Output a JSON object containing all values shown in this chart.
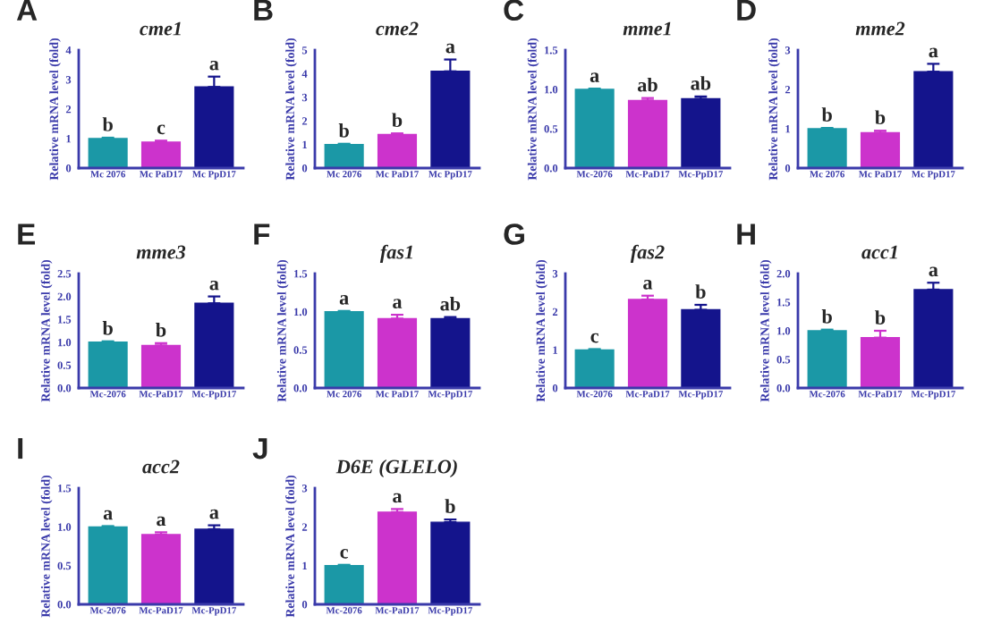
{
  "chart_data": [
    {
      "type": "bar",
      "title": "cme1",
      "annotations": [
        "A"
      ],
      "ylabel": "Relative mRNA level (fold)",
      "categories": [
        "Mc 2076",
        "Mc PaD17",
        "Mc PpD17"
      ],
      "values": [
        1.0,
        0.88,
        2.75
      ],
      "errors": [
        0.03,
        0.05,
        0.35
      ],
      "value_labels": [
        "b",
        "c",
        "a"
      ],
      "colors": [
        "#1b98a6",
        "#cc33cc",
        "#14148c"
      ],
      "ylim": [
        0,
        4
      ],
      "yticks": [
        0,
        1,
        2,
        3,
        4
      ]
    },
    {
      "type": "bar",
      "title": "cme2",
      "annotations": [
        "B"
      ],
      "ylabel": "Relative mRNA level (fold)",
      "categories": [
        "Mc 2076",
        "Mc PaD17",
        "Mc PpD17"
      ],
      "values": [
        1.0,
        1.42,
        4.1
      ],
      "errors": [
        0.03,
        0.05,
        0.5
      ],
      "value_labels": [
        "b",
        "b",
        "a"
      ],
      "colors": [
        "#1b98a6",
        "#cc33cc",
        "#14148c"
      ],
      "ylim": [
        0,
        5
      ],
      "yticks": [
        0,
        1,
        2,
        3,
        4,
        5
      ]
    },
    {
      "type": "bar",
      "title": "mme1",
      "annotations": [
        "C"
      ],
      "ylabel": "Relative mRNA level (fold)",
      "categories": [
        "Mc-2076",
        "Mc-PaD17",
        "Mc-PpD17"
      ],
      "values": [
        1.0,
        0.86,
        0.88
      ],
      "errors": [
        0.01,
        0.03,
        0.03
      ],
      "value_labels": [
        "a",
        "ab",
        "ab"
      ],
      "colors": [
        "#1b98a6",
        "#cc33cc",
        "#14148c"
      ],
      "ylim": [
        0,
        1.5
      ],
      "yticks": [
        {
          "value": 0,
          "label": "0.0"
        },
        {
          "value": 0.5,
          "label": "0.5"
        },
        {
          "value": 1,
          "label": "1.0"
        },
        {
          "value": 1.5,
          "label": "1.5"
        }
      ]
    },
    {
      "type": "bar",
      "title": "mme2",
      "annotations": [
        "D"
      ],
      "ylabel": "Relative mRNA level (fold)",
      "categories": [
        "Mc 2076",
        "Mc PaD17",
        "Mc PpD17"
      ],
      "values": [
        1.0,
        0.9,
        2.45
      ],
      "errors": [
        0.02,
        0.05,
        0.2
      ],
      "value_labels": [
        "b",
        "b",
        "a"
      ],
      "colors": [
        "#1b98a6",
        "#cc33cc",
        "#14148c"
      ],
      "ylim": [
        0,
        3
      ],
      "yticks": [
        0,
        1,
        2,
        3
      ]
    },
    {
      "type": "bar",
      "title": "mme3",
      "annotations": [
        "E"
      ],
      "ylabel": "Relative mRNA level (fold)",
      "categories": [
        "Mc-2076",
        "Mc-PaD17",
        "Mc-PpD17"
      ],
      "values": [
        1.0,
        0.93,
        1.85
      ],
      "errors": [
        0.02,
        0.05,
        0.15
      ],
      "value_labels": [
        "b",
        "b",
        "a"
      ],
      "colors": [
        "#1b98a6",
        "#cc33cc",
        "#14148c"
      ],
      "ylim": [
        0,
        2.5
      ],
      "yticks": [
        {
          "value": 0,
          "label": "0.0"
        },
        {
          "value": 0.5,
          "label": "0.5"
        },
        {
          "value": 1,
          "label": "1.0"
        },
        {
          "value": 1.5,
          "label": "1.5"
        },
        {
          "value": 2,
          "label": "2.0"
        },
        {
          "value": 2.5,
          "label": "2.5"
        }
      ]
    },
    {
      "type": "bar",
      "title": "fas1",
      "annotations": [
        "F"
      ],
      "ylabel": "Relative mRNA level (fold)",
      "categories": [
        "Mc 2076",
        "Mc PaD17",
        "Mc-PpD17"
      ],
      "values": [
        1.0,
        0.91,
        0.91
      ],
      "errors": [
        0.01,
        0.05,
        0.02
      ],
      "value_labels": [
        "a",
        "a",
        "ab"
      ],
      "colors": [
        "#1b98a6",
        "#cc33cc",
        "#14148c"
      ],
      "ylim": [
        0,
        1.5
      ],
      "yticks": [
        {
          "value": 0,
          "label": "0.0"
        },
        {
          "value": 0.5,
          "label": "0.5"
        },
        {
          "value": 1,
          "label": "1.0"
        },
        {
          "value": 1.5,
          "label": "1.5"
        }
      ]
    },
    {
      "type": "bar",
      "title": "fas2",
      "annotations": [
        "G"
      ],
      "ylabel": "Relative mRNA level (fold)",
      "categories": [
        "Mc-2076",
        "Mc-PaD17",
        "Mc-PpD17"
      ],
      "values": [
        1.0,
        2.32,
        2.05
      ],
      "errors": [
        0.02,
        0.1,
        0.13
      ],
      "value_labels": [
        "c",
        "a",
        "b"
      ],
      "colors": [
        "#1b98a6",
        "#cc33cc",
        "#14148c"
      ],
      "ylim": [
        0,
        3
      ],
      "yticks": [
        0,
        1,
        2,
        3
      ]
    },
    {
      "type": "bar",
      "title": "acc1",
      "annotations": [
        "H"
      ],
      "ylabel": "Relative mRNA level (fold)",
      "categories": [
        "Mc-2076",
        "Mc-PaD17",
        "Mc-PpD17"
      ],
      "values": [
        1.0,
        0.88,
        1.72
      ],
      "errors": [
        0.02,
        0.12,
        0.12
      ],
      "value_labels": [
        "b",
        "b",
        "a"
      ],
      "colors": [
        "#1b98a6",
        "#cc33cc",
        "#14148c"
      ],
      "ylim": [
        0,
        2
      ],
      "yticks": [
        {
          "value": 0,
          "label": "0.0"
        },
        {
          "value": 0.5,
          "label": "0.5"
        },
        {
          "value": 1,
          "label": "1.0"
        },
        {
          "value": 1.5,
          "label": "1.5"
        },
        {
          "value": 2,
          "label": "2.0"
        }
      ]
    },
    {
      "type": "bar",
      "title": "acc2",
      "annotations": [
        "I"
      ],
      "ylabel": "Relative mRNA level (fold)",
      "categories": [
        "Mc-2076",
        "Mc-PaD17",
        "Mc-PpD17"
      ],
      "values": [
        1.0,
        0.9,
        0.97
      ],
      "errors": [
        0.01,
        0.03,
        0.05
      ],
      "value_labels": [
        "a",
        "a",
        "a"
      ],
      "colors": [
        "#1b98a6",
        "#cc33cc",
        "#14148c"
      ],
      "ylim": [
        0,
        1.5
      ],
      "yticks": [
        {
          "value": 0,
          "label": "0.0"
        },
        {
          "value": 0.5,
          "label": "0.5"
        },
        {
          "value": 1,
          "label": "1.0"
        },
        {
          "value": 1.5,
          "label": "1.5"
        }
      ]
    },
    {
      "type": "bar",
      "title": "D6E (GLELO)",
      "annotations": [
        "J"
      ],
      "ylabel": "Relative mRNA level (fold)",
      "categories": [
        "Mc-2076",
        "Mc-PaD17",
        "Mc-PpD17"
      ],
      "values": [
        1.0,
        2.38,
        2.12
      ],
      "errors": [
        0.02,
        0.08,
        0.07
      ],
      "value_labels": [
        "c",
        "a",
        "b"
      ],
      "colors": [
        "#1b98a6",
        "#cc33cc",
        "#14148c"
      ],
      "ylim": [
        0,
        3
      ],
      "yticks": [
        0,
        1,
        2,
        3
      ]
    }
  ]
}
